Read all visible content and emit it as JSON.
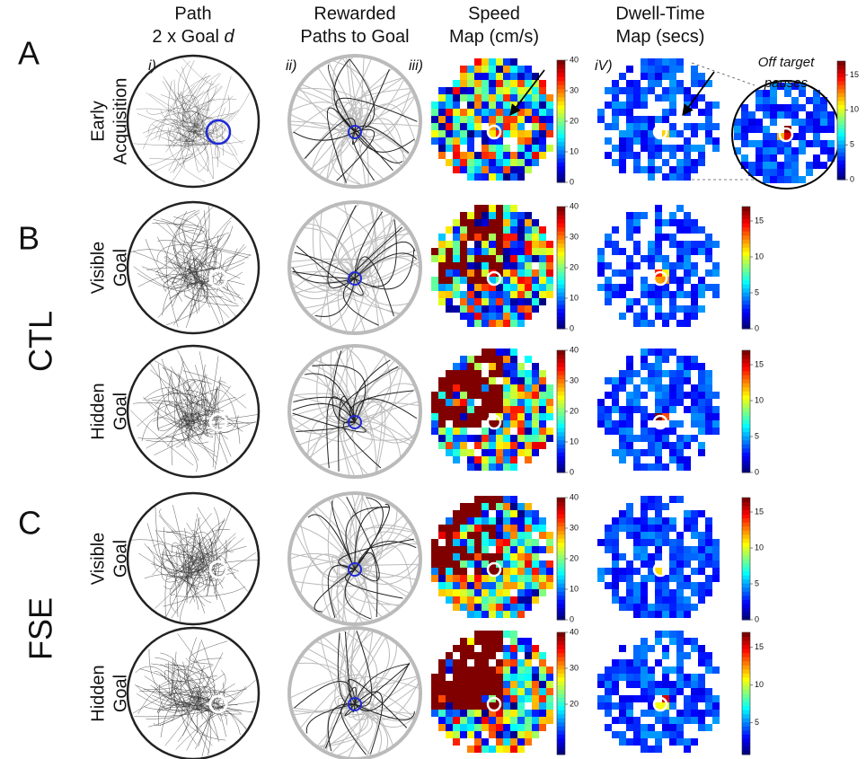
{
  "panels": [
    {
      "letter": "A"
    },
    {
      "letter": "B"
    },
    {
      "letter": "C"
    }
  ],
  "groups": [
    "CTL",
    "FSE"
  ],
  "columns": [
    {
      "title": [
        "Path",
        "2 x Goal "
      ],
      "title_italic": "d",
      "label": "i)"
    },
    {
      "title": [
        "Rewarded",
        "Paths to Goal"
      ],
      "label": "ii)"
    },
    {
      "title": [
        "Speed",
        "Map (cm/s)"
      ],
      "label": "iii)"
    },
    {
      "title": [
        "Dwell-Time",
        "Map (secs)"
      ],
      "label": "iV)"
    }
  ],
  "rows": [
    {
      "label": [
        "Early",
        "Acquisition"
      ],
      "speed_ticks": [
        0,
        10,
        20,
        30,
        40
      ]
    },
    {
      "label": [
        "Visible",
        "Goal"
      ],
      "speed_ticks": [
        0,
        10,
        20,
        30,
        40
      ],
      "dwell_ticks": [
        0,
        5,
        10,
        15
      ]
    },
    {
      "label": [
        "Hidden",
        "Goal"
      ],
      "speed_ticks": [
        0,
        10,
        20,
        30,
        40
      ],
      "dwell_ticks": [
        0,
        5,
        10,
        15
      ]
    },
    {
      "label": [
        "Visible",
        "Goal"
      ],
      "speed_ticks": [
        0,
        10,
        20,
        30,
        40
      ],
      "dwell_ticks": [
        0,
        5,
        10,
        15
      ]
    },
    {
      "label": [
        "Hidden",
        "Goal"
      ],
      "speed_ticks": [
        20,
        30,
        40
      ],
      "dwell_ticks": [
        5,
        10,
        15
      ]
    }
  ],
  "inset": {
    "label": [
      "Off target",
      "pauses"
    ],
    "ticks": [
      0,
      5,
      10,
      15
    ]
  }
}
